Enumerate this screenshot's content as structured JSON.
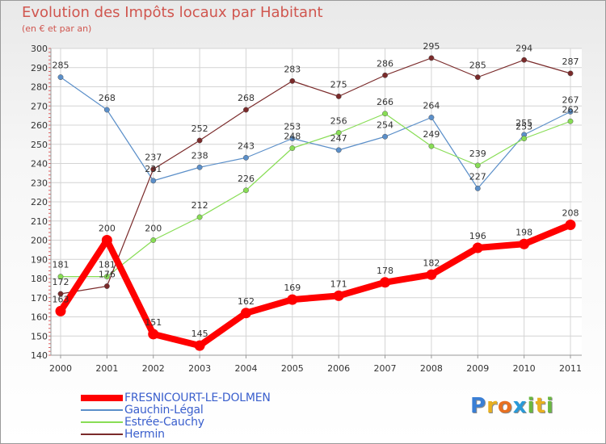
{
  "chart_data": {
    "type": "line",
    "title": "Evolution des Impôts locaux par Habitant",
    "subtitle": "(en € et par an)",
    "xlabel": "",
    "ylabel": "",
    "ylim": [
      140,
      300
    ],
    "yticks": [
      140,
      150,
      160,
      170,
      180,
      190,
      200,
      210,
      220,
      230,
      240,
      250,
      260,
      270,
      280,
      290,
      300
    ],
    "categories": [
      "2000",
      "2001",
      "2002",
      "2003",
      "2004",
      "2005",
      "2006",
      "2007",
      "2008",
      "2009",
      "2010",
      "2011"
    ],
    "series": [
      {
        "name": "FRESNICOURT-LE-DOLMEN",
        "color": "#ff0000",
        "values": [
          163,
          200,
          151,
          145,
          162,
          169,
          171,
          178,
          182,
          196,
          198,
          208
        ]
      },
      {
        "name": "Gauchin-Légal",
        "color": "#5b8fc9",
        "values": [
          285,
          268,
          231,
          238,
          243,
          253,
          247,
          254,
          264,
          227,
          255,
          267
        ]
      },
      {
        "name": "Estrée-Cauchy",
        "color": "#88dd55",
        "values": [
          181,
          181,
          200,
          212,
          226,
          248,
          256,
          266,
          249,
          239,
          253,
          262
        ]
      },
      {
        "name": "Hermin",
        "color": "#7a2a2a",
        "values": [
          172,
          176,
          237,
          252,
          268,
          283,
          275,
          286,
          295,
          285,
          294,
          287
        ]
      }
    ],
    "legend_position": "bottom-left",
    "grid": true
  },
  "brand": {
    "letters": [
      "P",
      "r",
      "o",
      "x",
      "i",
      "t",
      "i"
    ],
    "colors": [
      "#3a7fd5",
      "#e8b020",
      "#e87020",
      "#2a9ad8",
      "#6ab840",
      "#e8b020",
      "#6ab840"
    ]
  }
}
